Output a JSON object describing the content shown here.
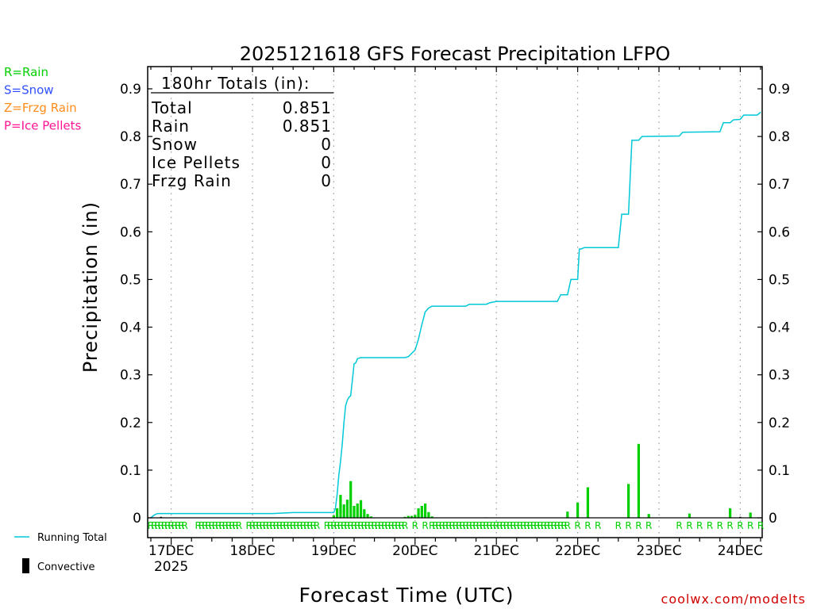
{
  "chart_data": {
    "type": "bar",
    "title": "2025121618 GFS Forecast Precipitation LFPO",
    "xlabel": "Forecast Time (UTC)",
    "ylabel": "Precipitation (in)",
    "ylim": [
      0,
      0.93
    ],
    "xlim_hours": [
      0,
      180
    ],
    "y_ticks": [
      0,
      0.1,
      0.2,
      0.3,
      0.4,
      0.5,
      0.6,
      0.7,
      0.8,
      0.9
    ],
    "y_tick_labels": [
      "0",
      "0.1",
      "0.2",
      "0.3",
      "0.4",
      "0.5",
      "0.6",
      "0.7",
      "0.8",
      "0.9"
    ],
    "x_ticks": [
      {
        "hour": 6,
        "label": "17DEC",
        "sublabel": "2025"
      },
      {
        "hour": 30,
        "label": "18DEC"
      },
      {
        "hour": 54,
        "label": "19DEC"
      },
      {
        "hour": 78,
        "label": "20DEC"
      },
      {
        "hour": 102,
        "label": "21DEC"
      },
      {
        "hour": 126,
        "label": "22DEC"
      },
      {
        "hour": 150,
        "label": "23DEC"
      },
      {
        "hour": 174,
        "label": "24DEC"
      }
    ],
    "legend": [
      {
        "label": "R=Rain",
        "color": "#00d000"
      },
      {
        "label": "S=Snow",
        "color": "#3050ff"
      },
      {
        "label": "Z=Frzg Rain",
        "color": "#ff8c1a"
      },
      {
        "label": "P=Ice Pellets",
        "color": "#ff1493"
      }
    ],
    "key": [
      {
        "label": "Running Total",
        "color": "#00c8d8"
      },
      {
        "label": "Convective",
        "color": "#000000"
      }
    ],
    "totals": {
      "heading": "180hr Totals (in):",
      "rows": [
        {
          "label": "Total",
          "value": "0.851"
        },
        {
          "label": "Rain",
          "value": "0.851"
        },
        {
          "label": "Snow",
          "value": "0"
        },
        {
          "label": "Ice Pellets",
          "value": "0"
        },
        {
          "label": "Frzg Rain",
          "value": "0"
        }
      ]
    },
    "series": [
      {
        "name": "Hourly Precipitation (Rain)",
        "color": "#00d000",
        "points": [
          {
            "hour": 54,
            "value": 0.005
          },
          {
            "hour": 55,
            "value": 0.02
          },
          {
            "hour": 56,
            "value": 0.048
          },
          {
            "hour": 57,
            "value": 0.028
          },
          {
            "hour": 58,
            "value": 0.038
          },
          {
            "hour": 59,
            "value": 0.077
          },
          {
            "hour": 60,
            "value": 0.025
          },
          {
            "hour": 61,
            "value": 0.03
          },
          {
            "hour": 62,
            "value": 0.037
          },
          {
            "hour": 63,
            "value": 0.018
          },
          {
            "hour": 64,
            "value": 0.008
          },
          {
            "hour": 65,
            "value": 0.003
          },
          {
            "hour": 75,
            "value": 0.002
          },
          {
            "hour": 76,
            "value": 0.004
          },
          {
            "hour": 77,
            "value": 0.004
          },
          {
            "hour": 78,
            "value": 0.006
          },
          {
            "hour": 79,
            "value": 0.02
          },
          {
            "hour": 80,
            "value": 0.025
          },
          {
            "hour": 81,
            "value": 0.03
          },
          {
            "hour": 82,
            "value": 0.012
          },
          {
            "hour": 83,
            "value": 0.003
          },
          {
            "hour": 123,
            "value": 0.013
          },
          {
            "hour": 126,
            "value": 0.032
          },
          {
            "hour": 129,
            "value": 0.064
          },
          {
            "hour": 141,
            "value": 0.071
          },
          {
            "hour": 144,
            "value": 0.155
          },
          {
            "hour": 147,
            "value": 0.008
          },
          {
            "hour": 159,
            "value": 0.009
          },
          {
            "hour": 171,
            "value": 0.02
          },
          {
            "hour": 177,
            "value": 0.011
          }
        ]
      },
      {
        "name": "Running Total",
        "color": "#00c8d8",
        "points": [
          {
            "hour": 0,
            "value": 0.0
          },
          {
            "hour": 1,
            "value": 0.006
          },
          {
            "hour": 2,
            "value": 0.009
          },
          {
            "hour": 12,
            "value": 0.009
          },
          {
            "hour": 36,
            "value": 0.009
          },
          {
            "hour": 42,
            "value": 0.011
          },
          {
            "hour": 54,
            "value": 0.011
          },
          {
            "hour": 54.5,
            "value": 0.02
          },
          {
            "hour": 55,
            "value": 0.05
          },
          {
            "hour": 55.5,
            "value": 0.09
          },
          {
            "hour": 56,
            "value": 0.118
          },
          {
            "hour": 56.5,
            "value": 0.155
          },
          {
            "hour": 57,
            "value": 0.2
          },
          {
            "hour": 57.5,
            "value": 0.235
          },
          {
            "hour": 58,
            "value": 0.247
          },
          {
            "hour": 58.5,
            "value": 0.253
          },
          {
            "hour": 59,
            "value": 0.256
          },
          {
            "hour": 59.5,
            "value": 0.29
          },
          {
            "hour": 60,
            "value": 0.323
          },
          {
            "hour": 60.5,
            "value": 0.325
          },
          {
            "hour": 61,
            "value": 0.334
          },
          {
            "hour": 62,
            "value": 0.336
          },
          {
            "hour": 75,
            "value": 0.336
          },
          {
            "hour": 76,
            "value": 0.338
          },
          {
            "hour": 77,
            "value": 0.345
          },
          {
            "hour": 78,
            "value": 0.352
          },
          {
            "hour": 79,
            "value": 0.375
          },
          {
            "hour": 80,
            "value": 0.405
          },
          {
            "hour": 81,
            "value": 0.432
          },
          {
            "hour": 82,
            "value": 0.44
          },
          {
            "hour": 83,
            "value": 0.444
          },
          {
            "hour": 93,
            "value": 0.444
          },
          {
            "hour": 94,
            "value": 0.448
          },
          {
            "hour": 99,
            "value": 0.448
          },
          {
            "hour": 100,
            "value": 0.451
          },
          {
            "hour": 102,
            "value": 0.454
          },
          {
            "hour": 120,
            "value": 0.454
          },
          {
            "hour": 121,
            "value": 0.468
          },
          {
            "hour": 123,
            "value": 0.468
          },
          {
            "hour": 124,
            "value": 0.5
          },
          {
            "hour": 126,
            "value": 0.5
          },
          {
            "hour": 126.5,
            "value": 0.564
          },
          {
            "hour": 127,
            "value": 0.564
          },
          {
            "hour": 128,
            "value": 0.567
          },
          {
            "hour": 138,
            "value": 0.567
          },
          {
            "hour": 139,
            "value": 0.637
          },
          {
            "hour": 141,
            "value": 0.637
          },
          {
            "hour": 142,
            "value": 0.792
          },
          {
            "hour": 144,
            "value": 0.792
          },
          {
            "hour": 145,
            "value": 0.8
          },
          {
            "hour": 156,
            "value": 0.801
          },
          {
            "hour": 157,
            "value": 0.809
          },
          {
            "hour": 168,
            "value": 0.81
          },
          {
            "hour": 169,
            "value": 0.829
          },
          {
            "hour": 171,
            "value": 0.829
          },
          {
            "hour": 172,
            "value": 0.835
          },
          {
            "hour": 174,
            "value": 0.836
          },
          {
            "hour": 175,
            "value": 0.845
          },
          {
            "hour": 179,
            "value": 0.845
          },
          {
            "hour": 180,
            "value": 0.851
          }
        ]
      },
      {
        "name": "Convective",
        "color": "#000000",
        "points": [
          {
            "hour": 3,
            "value": 0.002
          },
          {
            "hour": 99,
            "value": 0.001
          },
          {
            "hour": 174,
            "value": 0.002
          }
        ]
      }
    ],
    "ptype_symbol": "R",
    "ptype_groups": [
      {
        "from": 0,
        "to": 10
      },
      {
        "from": 14,
        "to": 26
      },
      {
        "from": 29,
        "to": 48
      },
      {
        "from": 49,
        "to": 49
      },
      {
        "from": 52,
        "to": 75
      },
      {
        "from": 78,
        "to": 78
      },
      {
        "from": 81,
        "to": 81
      },
      {
        "from": 83,
        "to": 122
      },
      {
        "from": 123,
        "to": 123
      },
      {
        "from": 126,
        "to": 126
      },
      {
        "from": 129,
        "to": 129
      },
      {
        "from": 132,
        "to": 132
      },
      {
        "from": 138,
        "to": 138
      },
      {
        "from": 141,
        "to": 141
      },
      {
        "from": 144,
        "to": 144
      },
      {
        "from": 147,
        "to": 147
      },
      {
        "from": 156,
        "to": 156
      },
      {
        "from": 159,
        "to": 159
      },
      {
        "from": 162,
        "to": 162
      },
      {
        "from": 165,
        "to": 165
      },
      {
        "from": 168,
        "to": 168
      },
      {
        "from": 171,
        "to": 171
      },
      {
        "from": 174,
        "to": 174
      },
      {
        "from": 177,
        "to": 177
      },
      {
        "from": 180,
        "to": 180
      }
    ],
    "credit": "coolwx.com/modelts"
  }
}
